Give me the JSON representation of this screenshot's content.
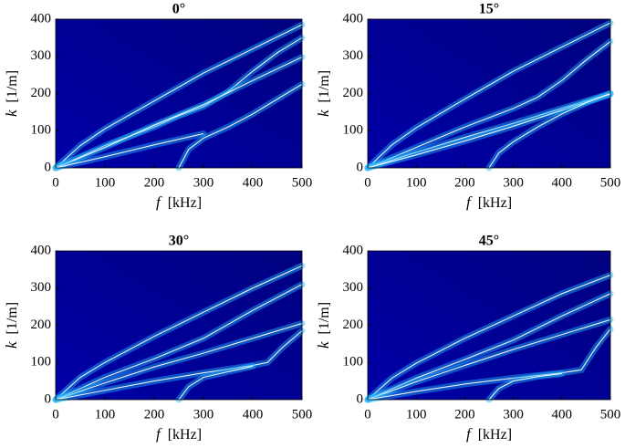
{
  "chart_data": [
    {
      "type": "line",
      "title": "0°",
      "x_label_symbol": "f",
      "x_label_unit": "[kHz]",
      "y_label_symbol": "k",
      "y_label_unit": "[1/m]",
      "xlim": [
        0,
        500
      ],
      "ylim": [
        0,
        400
      ],
      "xticks": [
        0,
        100,
        200,
        300,
        400,
        500
      ],
      "yticks": [
        0,
        100,
        200,
        300,
        400
      ],
      "series": [
        {
          "color": "#ffffff",
          "x": [
            0,
            50,
            100,
            200,
            300,
            400,
            500
          ],
          "values": [
            0,
            60,
            105,
            180,
            255,
            320,
            385
          ]
        },
        {
          "color": "#ffffff",
          "x": [
            0,
            100,
            200,
            250,
            300,
            350,
            400,
            450,
            500
          ],
          "values": [
            0,
            60,
            110,
            140,
            165,
            205,
            260,
            310,
            350
          ]
        },
        {
          "color": "#ffffff",
          "x": [
            0,
            100,
            200,
            300,
            400,
            500
          ],
          "values": [
            0,
            55,
            115,
            170,
            235,
            298
          ]
        },
        {
          "color": "#ffffff",
          "x": [
            250,
            270,
            300,
            350,
            400,
            450,
            500
          ],
          "values": [
            0,
            50,
            80,
            110,
            145,
            185,
            225
          ]
        },
        {
          "color": "#ffffff",
          "x": [
            0,
            100,
            200,
            300
          ],
          "values": [
            0,
            30,
            62,
            92
          ]
        }
      ]
    },
    {
      "type": "line",
      "title": "15°",
      "x_label_symbol": "f",
      "x_label_unit": "[kHz]",
      "y_label_symbol": "k",
      "y_label_unit": "[1/m]",
      "xlim": [
        0,
        500
      ],
      "ylim": [
        0,
        400
      ],
      "xticks": [
        0,
        100,
        200,
        300,
        400,
        500
      ],
      "yticks": [
        0,
        100,
        200,
        300,
        400
      ],
      "series": [
        {
          "color": "#ffffff",
          "x": [
            0,
            50,
            100,
            200,
            300,
            400,
            500
          ],
          "values": [
            0,
            62,
            108,
            185,
            260,
            325,
            390
          ]
        },
        {
          "color": "#ffffff",
          "x": [
            0,
            100,
            200,
            300,
            350,
            400,
            450,
            500
          ],
          "values": [
            0,
            55,
            110,
            160,
            190,
            235,
            290,
            340
          ]
        },
        {
          "color": "#ffffff",
          "x": [
            0,
            100,
            200,
            300,
            400,
            500
          ],
          "values": [
            0,
            42,
            82,
            120,
            160,
            200
          ]
        },
        {
          "color": "#ffffff",
          "x": [
            0,
            100,
            200,
            300,
            400,
            500
          ],
          "values": [
            0,
            35,
            72,
            112,
            155,
            198
          ]
        },
        {
          "color": "#ffffff",
          "x": [
            250,
            270,
            300,
            350,
            400,
            450,
            500
          ],
          "values": [
            0,
            40,
            70,
            110,
            145,
            175,
            200
          ]
        }
      ]
    },
    {
      "type": "line",
      "title": "30°",
      "x_label_symbol": "f",
      "x_label_unit": "[kHz]",
      "y_label_symbol": "k",
      "y_label_unit": "[1/m]",
      "xlim": [
        0,
        500
      ],
      "ylim": [
        0,
        400
      ],
      "xticks": [
        0,
        100,
        200,
        300,
        400,
        500
      ],
      "yticks": [
        0,
        100,
        200,
        300,
        400
      ],
      "series": [
        {
          "color": "#ffffff",
          "x": [
            0,
            50,
            100,
            200,
            300,
            400,
            500
          ],
          "values": [
            0,
            60,
            100,
            170,
            235,
            300,
            360
          ]
        },
        {
          "color": "#ffffff",
          "x": [
            0,
            100,
            200,
            300,
            400,
            500
          ],
          "values": [
            0,
            60,
            110,
            165,
            240,
            310
          ]
        },
        {
          "color": "#ffffff",
          "x": [
            0,
            100,
            200,
            300,
            400,
            500
          ],
          "values": [
            0,
            45,
            88,
            125,
            165,
            205
          ]
        },
        {
          "color": "#ffffff",
          "x": [
            0,
            100,
            200,
            300,
            400,
            430,
            460,
            500
          ],
          "values": [
            0,
            25,
            50,
            72,
            92,
            100,
            140,
            185
          ]
        },
        {
          "color": "#ffffff",
          "x": [
            250,
            270,
            300,
            350,
            400
          ],
          "values": [
            0,
            35,
            60,
            75,
            90
          ]
        }
      ]
    },
    {
      "type": "line",
      "title": "45°",
      "x_label_symbol": "f",
      "x_label_unit": "[kHz]",
      "y_label_symbol": "k",
      "y_label_unit": "[1/m]",
      "xlim": [
        0,
        500
      ],
      "ylim": [
        0,
        400
      ],
      "xticks": [
        0,
        100,
        200,
        300,
        400,
        500
      ],
      "yticks": [
        0,
        100,
        200,
        300,
        400
      ],
      "series": [
        {
          "color": "#ffffff",
          "x": [
            0,
            50,
            100,
            200,
            300,
            400,
            500
          ],
          "values": [
            0,
            58,
            98,
            165,
            225,
            285,
            335
          ]
        },
        {
          "color": "#ffffff",
          "x": [
            0,
            100,
            200,
            300,
            400,
            500
          ],
          "values": [
            0,
            58,
            108,
            160,
            225,
            285
          ]
        },
        {
          "color": "#ffffff",
          "x": [
            0,
            100,
            200,
            300,
            400,
            500
          ],
          "values": [
            0,
            48,
            92,
            135,
            175,
            215
          ]
        },
        {
          "color": "#ffffff",
          "x": [
            0,
            100,
            200,
            300,
            400,
            440,
            470,
            500
          ],
          "values": [
            0,
            22,
            42,
            58,
            72,
            80,
            140,
            190
          ]
        },
        {
          "color": "#ffffff",
          "x": [
            250,
            270,
            300,
            350,
            400
          ],
          "values": [
            0,
            30,
            50,
            62,
            70
          ]
        }
      ]
    }
  ]
}
